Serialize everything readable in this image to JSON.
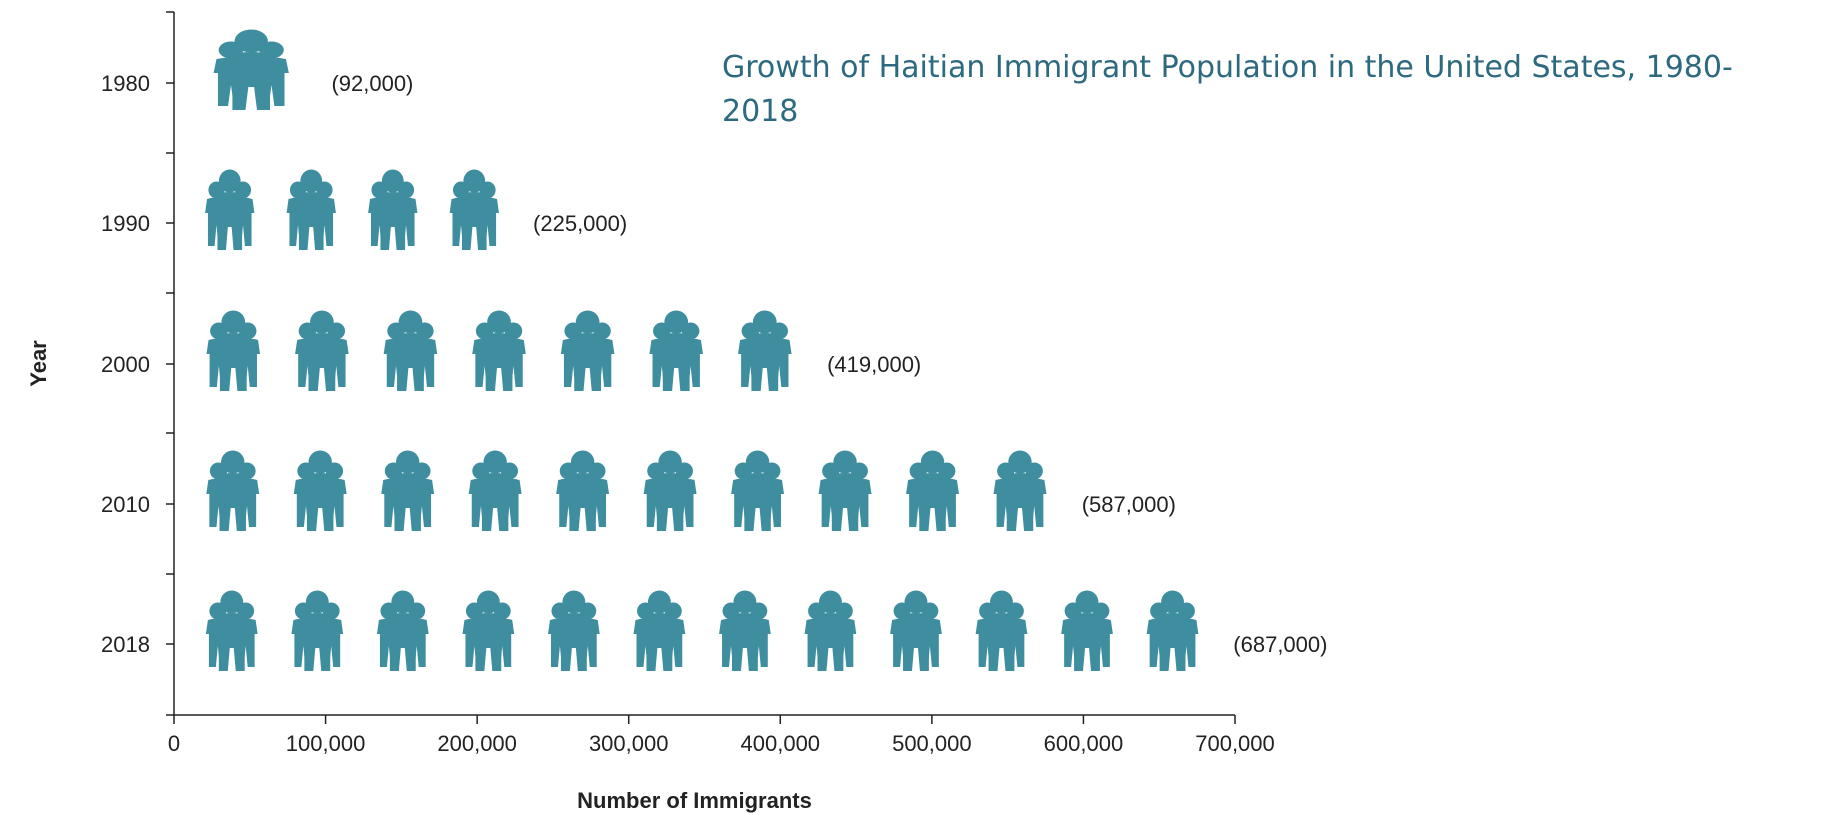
{
  "chart_data": {
    "type": "bar",
    "title": "Growth of Haitian Immigrant Population in the United States, 1980-2018",
    "xlabel": "Number of Immigrants",
    "ylabel": "Year",
    "categories": [
      "1980",
      "1990",
      "2000",
      "2010",
      "2018"
    ],
    "values": [
      92000,
      225000,
      419000,
      587000,
      687000
    ],
    "data_labels": [
      "(92,000)",
      "(225,000)",
      "(419,000)",
      "(587,000)",
      "(687,000)"
    ],
    "xlim": [
      0,
      700000
    ],
    "x_ticks": [
      0,
      100000,
      200000,
      300000,
      400000,
      500000,
      600000,
      700000
    ],
    "x_tick_labels": [
      "0",
      "100,000",
      "200,000",
      "300,000",
      "400,000",
      "500,000",
      "600,000",
      "700,000"
    ],
    "bar_style": "pictograph of people groups",
    "grid": false,
    "colors": {
      "icon": "#3f8ea0",
      "title": "#2d6a80",
      "axis": "#222222"
    }
  }
}
